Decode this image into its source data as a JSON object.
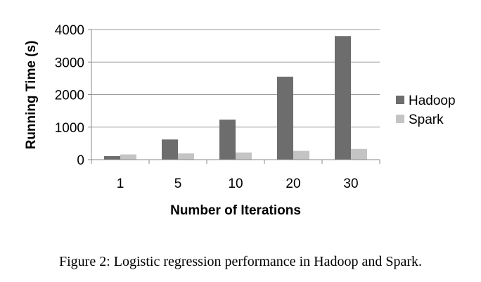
{
  "chart_data": {
    "type": "bar",
    "categories": [
      "1",
      "5",
      "10",
      "20",
      "30"
    ],
    "series": [
      {
        "name": "Hadoop",
        "values": [
          110,
          620,
          1230,
          2550,
          3800
        ],
        "color": "#6d6d6d"
      },
      {
        "name": "Spark",
        "values": [
          160,
          190,
          220,
          270,
          330
        ],
        "color": "#c4c4c4"
      }
    ],
    "title": "",
    "xlabel": "Number of Iterations",
    "ylabel": "Running Time (s)",
    "ylim": [
      0,
      4000
    ],
    "yticks": [
      "0",
      "1000",
      "2000",
      "3000",
      "4000"
    ],
    "grid": true,
    "legend_position": "right"
  },
  "caption": "Figure 2: Logistic regression performance in Hadoop and Spark."
}
